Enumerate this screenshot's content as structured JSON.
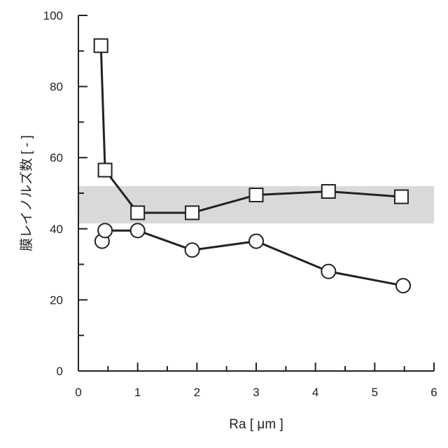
{
  "chart_data": {
    "type": "line",
    "xlabel": "Ra [ μm ]",
    "ylabel": "膜レイノルズ数 [ - ]",
    "xlim": [
      0,
      6
    ],
    "ylim": [
      0,
      100
    ],
    "xticks": [
      0,
      1,
      2,
      3,
      4,
      5,
      6
    ],
    "yticks": [
      0,
      20,
      40,
      60,
      80,
      100
    ],
    "grid": false,
    "shaded_band": {
      "y_from": 41.5,
      "y_to": 52,
      "color": "#d9d9d9"
    },
    "series": [
      {
        "marker": "square",
        "x": [
          0.38,
          0.45,
          1.0,
          1.92,
          3.0,
          4.22,
          5.45
        ],
        "y": [
          91.5,
          56.5,
          44.5,
          44.5,
          49.5,
          50.5,
          49.0
        ]
      },
      {
        "marker": "circle",
        "x": [
          0.4,
          0.45,
          1.0,
          1.92,
          3.0,
          4.22,
          5.48
        ],
        "y": [
          36.5,
          39.5,
          39.5,
          34.0,
          36.5,
          28.0,
          24.0
        ]
      }
    ]
  }
}
